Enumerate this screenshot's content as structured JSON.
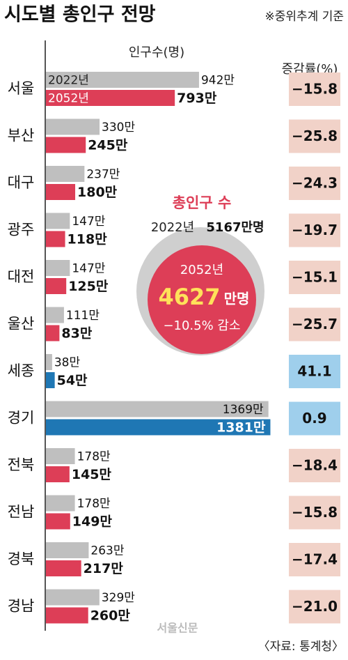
{
  "chart_data": {
    "type": "bar",
    "title": "시도별 총인구 전망",
    "note": "※중위추계 기준",
    "value_label": "인구수(명)",
    "rate_label": "증감률(%)",
    "source": "〈자료: 통계청〉",
    "credit": "서울신문",
    "categories": [
      "서울",
      "부산",
      "대구",
      "광주",
      "대전",
      "울산",
      "세종",
      "경기",
      "전북",
      "전남",
      "경북",
      "경남"
    ],
    "series": [
      {
        "name": "2022년",
        "color": "#bfbfbf",
        "values": [
          942,
          330,
          237,
          147,
          147,
          111,
          38,
          1369,
          178,
          178,
          263,
          329
        ],
        "value_labels": [
          "942만",
          "330만",
          "237만",
          "147만",
          "147만",
          "111만",
          "38만",
          "1369만",
          "178만",
          "178만",
          "263만",
          "329만"
        ]
      },
      {
        "name": "2052년",
        "color": "#dd3e57",
        "point_colors": [
          null,
          null,
          null,
          null,
          null,
          null,
          "#1f77b4",
          "#1f77b4",
          null,
          null,
          null,
          null
        ],
        "values": [
          793,
          245,
          180,
          118,
          125,
          83,
          54,
          1381,
          145,
          149,
          217,
          260
        ],
        "value_labels": [
          "793만",
          "245만",
          "180만",
          "118만",
          "125만",
          "83만",
          "54만",
          "1381만",
          "145만",
          "149만",
          "217만",
          "260만"
        ]
      }
    ],
    "rates": {
      "values": [
        -15.8,
        -25.8,
        -24.3,
        -19.7,
        -15.1,
        -25.7,
        41.1,
        0.9,
        -18.4,
        -15.8,
        -17.4,
        -21.0
      ],
      "value_labels": [
        "−15.8",
        "−25.8",
        "−24.3",
        "−19.7",
        "−15.1",
        "−25.7",
        "41.1",
        "0.9",
        "−18.4",
        "−15.8",
        "−17.4",
        "−21.0"
      ],
      "negative_color": "#f1d2c8",
      "positive_color": "#9fcfec"
    },
    "annotation": {
      "title": "총인구 수",
      "line_2022_year": "2022년",
      "line_2022_total": "5167만명",
      "year_2052": "2052년",
      "total_2052_number": "4627",
      "total_2052_unit": "만명",
      "change": "−10.5% 감소"
    }
  }
}
